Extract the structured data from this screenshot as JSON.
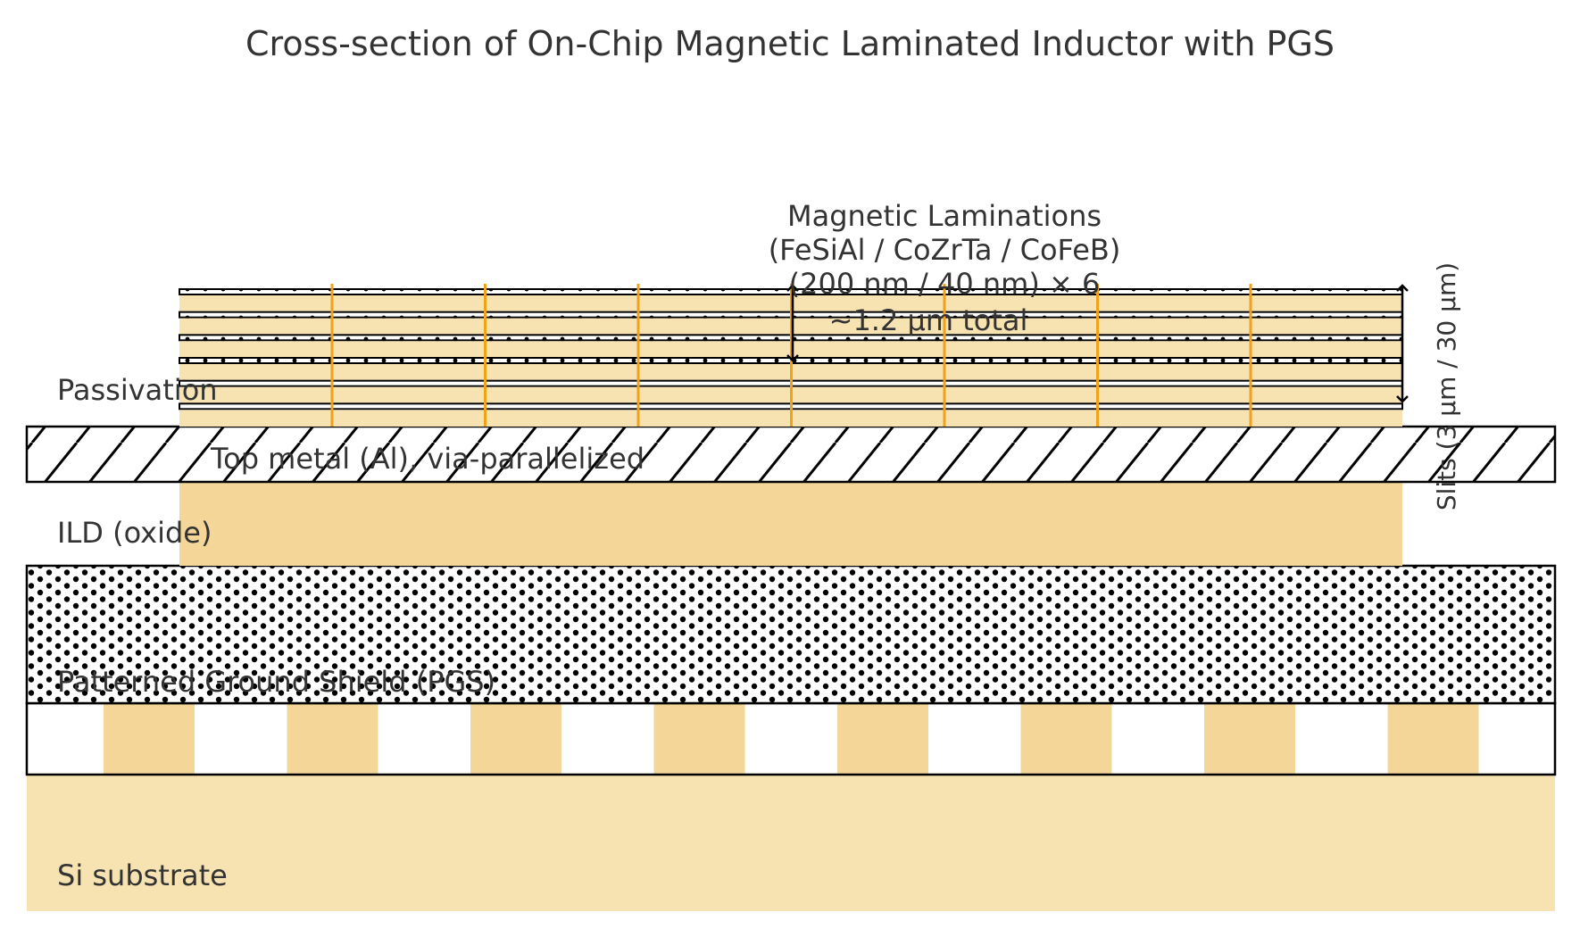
{
  "title": "Cross-section of On-Chip Magnetic Laminated Inductor with PGS",
  "labels": {
    "passivation": "Passivation",
    "top_metal": "Top metal (Al), via-parallelized",
    "ild": "ILD (oxide)",
    "pgs": "Patterned Ground Shield (PGS)",
    "substrate": "Si substrate",
    "laminations_line1": "Magnetic Laminations",
    "laminations_line2": "(FeSiAl / CoZrTa / CoFeB)",
    "laminations_line3": "(200 nm / 40 nm) × 6",
    "thickness": "~1.2 µm total",
    "slits": "Slits (3 µm / 30 µm)"
  },
  "colors": {
    "light_fill": "#f7e2b1",
    "dark_fill": "#f3d698",
    "slit_line": "#f0a21a",
    "outline": "#000000",
    "text": "#333333"
  },
  "lamination_pairs": 6,
  "slit_count": 7,
  "pgs_fingers": 8
}
